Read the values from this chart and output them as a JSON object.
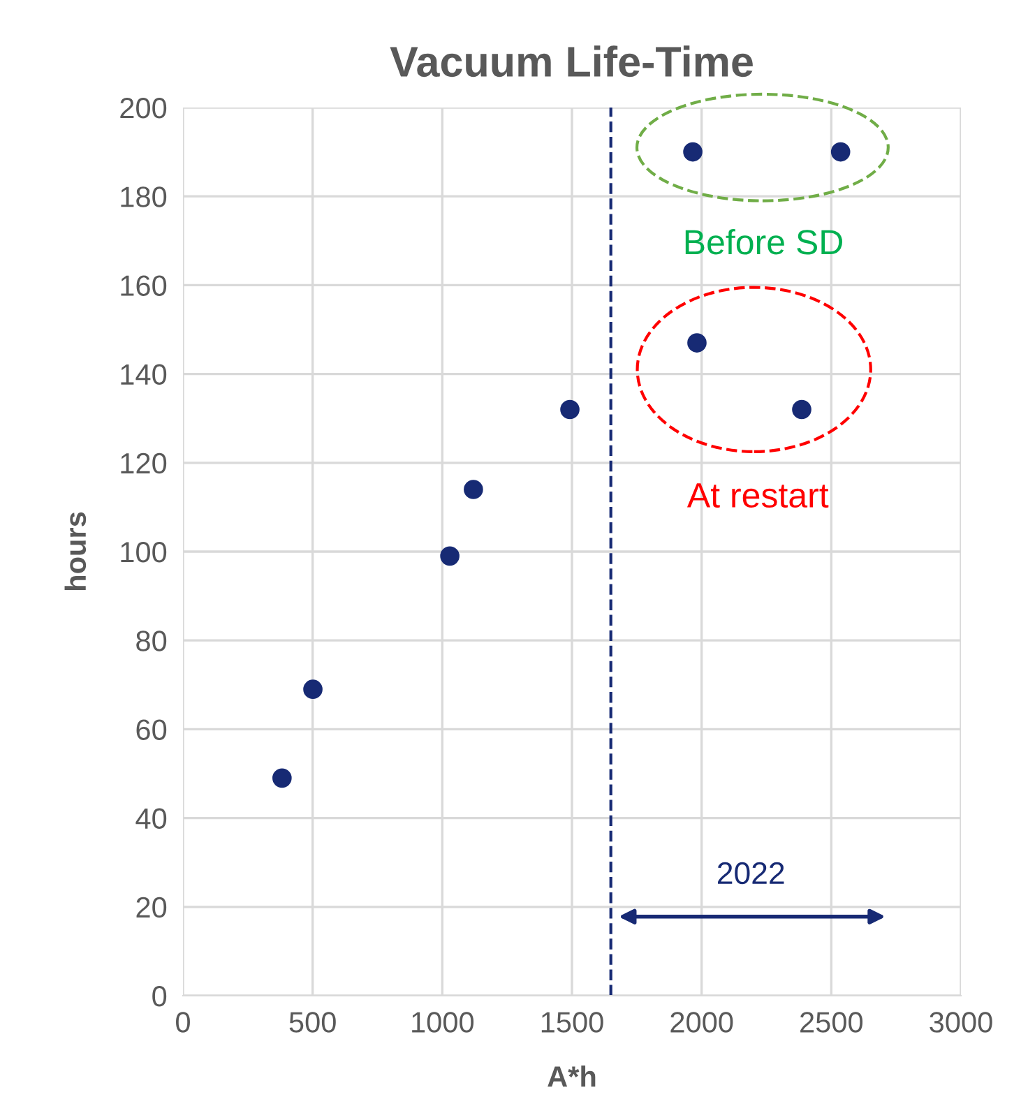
{
  "chart_data": {
    "type": "scatter",
    "title": "Vacuum Life-Time",
    "xlabel": "A*h",
    "ylabel": "hours",
    "series": [
      {
        "color": "#172a74",
        "x": [
          382,
          501,
          1029,
          1120,
          1492,
          1966,
          2536,
          1982,
          2386
        ],
        "values": [
          49,
          69,
          99,
          114,
          132,
          190,
          190,
          147,
          132
        ]
      }
    ],
    "xlim": [
      0,
      3000
    ],
    "xticks": [
      0,
      500,
      1000,
      1500,
      2000,
      2500,
      3000
    ],
    "ylim": [
      0,
      200
    ],
    "yticks": [
      0,
      20,
      40,
      60,
      80,
      100,
      120,
      140,
      160,
      180,
      200
    ],
    "grid": true,
    "marker": "circle",
    "ref_lines": [
      {
        "axis": "x",
        "value": 1650,
        "color": "#172a74",
        "line_style": "dashed"
      }
    ],
    "annotations": [
      "Before SD",
      "At restart",
      "2022"
    ]
  }
}
